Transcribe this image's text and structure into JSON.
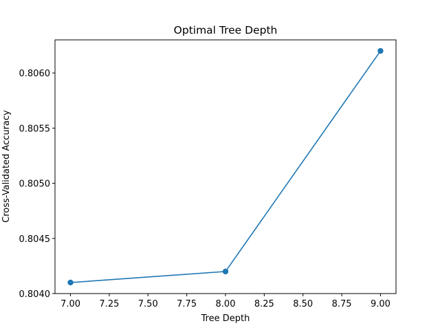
{
  "chart_data": {
    "type": "line",
    "title": "Optimal Tree Depth",
    "xlabel": "Tree Depth",
    "ylabel": "Cross-Validated Accuracy",
    "x": [
      7.0,
      8.0,
      9.0
    ],
    "series": [
      {
        "values": [
          0.8041,
          0.8042,
          0.8062
        ],
        "color": "#1f77b4",
        "marker": "circle"
      }
    ],
    "xlim": [
      6.9,
      9.1
    ],
    "ylim": [
      0.804,
      0.8063
    ],
    "xticks": [
      7.0,
      7.25,
      7.5,
      7.75,
      8.0,
      8.25,
      8.5,
      8.75,
      9.0
    ],
    "xtick_labels": [
      "7.00",
      "7.25",
      "7.50",
      "7.75",
      "8.00",
      "8.25",
      "8.50",
      "8.75",
      "9.00"
    ],
    "yticks": [
      0.804,
      0.8045,
      0.805,
      0.8055,
      0.806
    ],
    "ytick_labels": [
      "0.8040",
      "0.8045",
      "0.8050",
      "0.8055",
      "0.8060"
    ],
    "grid": false,
    "legend": false
  }
}
